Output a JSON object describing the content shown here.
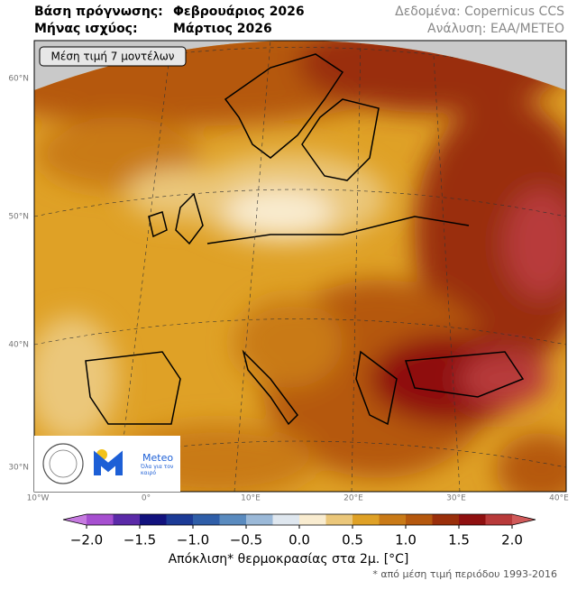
{
  "header": {
    "base_label": "Βάση πρόγνωσης:",
    "base_value": "Φεβρουάριος 2026",
    "month_label": "Μήνας ισχύος:",
    "month_value": "Μάρτιος 2026",
    "source": "Δεδομένα: Copernicus CCS",
    "analysis": "Ανάλυση: ΕΑΑ/METEO"
  },
  "map": {
    "model_box": "Μέση τιμή 7 μοντέλων",
    "lat_labels": [
      "60°N",
      "50°N",
      "40°N",
      "30°N"
    ],
    "lon_labels": [
      "10°W",
      "0°",
      "10°E",
      "20°E",
      "30°E",
      "40°E"
    ],
    "logo": {
      "name": "Meteo",
      "tagline": "Όλα για τον καιρό"
    }
  },
  "colorbar": {
    "bounds": [
      -2,
      -1.75,
      -1.5,
      -1.25,
      -1,
      -0.75,
      -0.5,
      -0.25,
      0,
      0.25,
      0.5,
      0.75,
      1,
      1.25,
      1.5,
      1.75,
      2
    ],
    "colors": [
      "#a64fd0",
      "#5b2aa8",
      "#12127e",
      "#1c3b96",
      "#2f5ea8",
      "#5a8bbf",
      "#9bb9d8",
      "#dfe7ef",
      "#f9ecd0",
      "#ebc77a",
      "#dfa126",
      "#c97a17",
      "#b5580e",
      "#9a2f0b",
      "#8f1010",
      "#b83a3a"
    ],
    "extend_colors": [
      "#c67ae0",
      "#d05a5a"
    ],
    "ticks": [
      {
        "value": -2,
        "label": "−2.0"
      },
      {
        "value": -1.5,
        "label": "−1.5"
      },
      {
        "value": -1,
        "label": "−1.0"
      },
      {
        "value": -0.5,
        "label": "−0.5"
      },
      {
        "value": 0,
        "label": "0.0"
      },
      0.5,
      {
        "value": 1,
        "label": "1.0"
      },
      1.5,
      {
        "value": 2,
        "label": "2.0"
      }
    ],
    "label": "Απόκλιση* θερμοκρασίας στα 2μ. [°C]",
    "footnote": "* από μέση τιμή περιόδου 1993-2016"
  }
}
